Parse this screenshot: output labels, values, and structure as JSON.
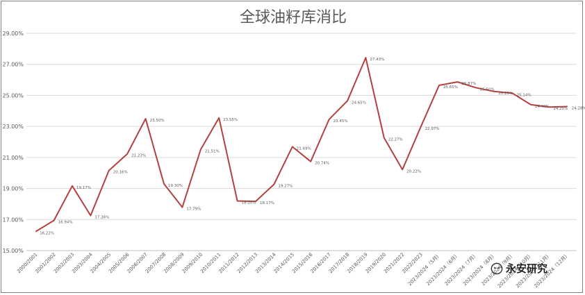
{
  "chart_data": {
    "type": "line",
    "title": "全球油籽库消比",
    "xlabel": "",
    "ylabel": "",
    "ylim": [
      15,
      29
    ],
    "yticks": [
      "15.00%",
      "17.00%",
      "19.00%",
      "21.00%",
      "23.00%",
      "25.00%",
      "27.00%",
      "29.00%"
    ],
    "grid": true,
    "categories": [
      "2000/2001",
      "2001/2002",
      "2002/2003",
      "2003/2004",
      "2004/2005",
      "2005/2006",
      "2006/2007",
      "2007/2008",
      "2008/2009",
      "2009/2010",
      "2010/2011",
      "2011/2012",
      "2012/2013",
      "2013/2014",
      "2014/2015",
      "2015/2016",
      "2016/2017",
      "2017/2018",
      "2018/2019",
      "2019/2020",
      "2021/2022",
      "2022/2023",
      "2023/2024（5月）",
      "2023/2024（6月）",
      "2023/2024（7月）",
      "2023/2024（8月）",
      "2023/2024（9月）",
      "2023/2024（10月）",
      "2023/2024（11月）",
      "2023/2024（12月）"
    ],
    "series": [
      {
        "values": [
          16.22,
          16.94,
          19.17,
          17.26,
          20.16,
          21.23,
          23.5,
          19.3,
          17.79,
          21.51,
          23.55,
          18.2,
          18.17,
          19.27,
          21.69,
          20.74,
          23.45,
          24.65,
          27.43,
          22.27,
          20.22,
          22.97,
          25.65,
          25.87,
          25.5,
          25.25,
          25.14,
          24.4,
          24.25,
          24.28
        ],
        "labels": [
          "16.22%",
          "16.94%",
          "19.17%",
          "17.26%",
          "20.16%",
          "21.23%",
          "23.50%",
          "19.30%",
          "17.79%",
          "21.51%",
          "23.55%",
          "18.20%",
          "18.17%",
          "19.27%",
          "21.69%",
          "20.74%",
          "23.45%",
          "24.65%",
          "27.43%",
          "22.27%",
          "20.22%",
          "22.97%",
          "25.65%",
          "25.87%",
          "25.50%",
          "25.25%",
          "25.14%",
          "24.40%",
          "24.25%",
          "24.28%"
        ],
        "color": "#b3403e"
      }
    ]
  },
  "watermark": {
    "text": "永安研究",
    "icon": "wechat-icon"
  }
}
